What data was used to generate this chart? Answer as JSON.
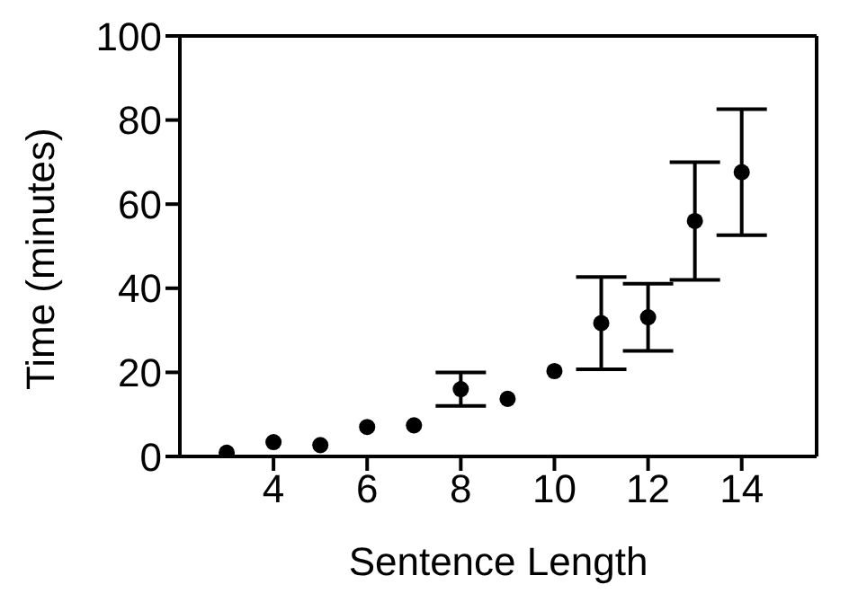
{
  "chart_data": {
    "type": "scatter",
    "xlabel": "Sentence Length",
    "ylabel": "Time (minutes)",
    "x": [
      3,
      4,
      5,
      6,
      7,
      8,
      9,
      10,
      11,
      12,
      13,
      14
    ],
    "values": [
      0.9,
      3.4,
      2.7,
      7,
      7.4,
      16,
      13.7,
      20.3,
      31.7,
      33.1,
      56,
      67.6
    ],
    "errors": [
      null,
      null,
      null,
      null,
      null,
      4,
      null,
      null,
      11,
      8,
      14,
      15
    ],
    "color": "#000000",
    "marker": "circle",
    "xlim": [
      2,
      15.6
    ],
    "xticks": [
      4,
      6,
      8,
      10,
      12,
      14
    ],
    "ylim": [
      0,
      100
    ],
    "yticks": [
      0,
      20,
      40,
      60,
      80,
      100
    ],
    "grid": false,
    "legend": false
  }
}
